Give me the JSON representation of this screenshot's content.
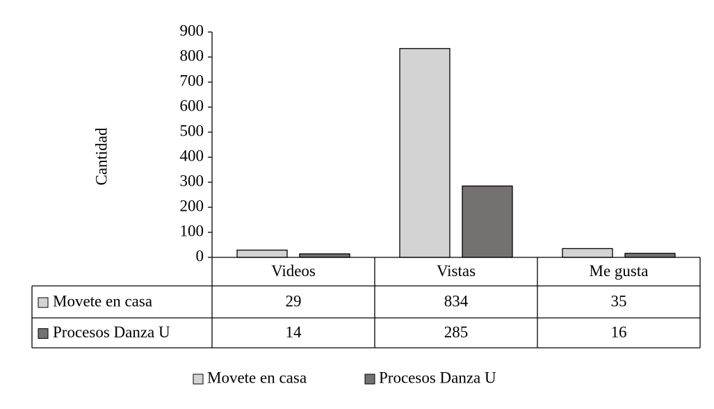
{
  "chart_data": {
    "type": "bar",
    "y_label": "Cantidad",
    "categories": [
      "Videos",
      "Vistas",
      "Me gusta"
    ],
    "series": [
      {
        "name": "Movete en casa",
        "color": "#d3d3d3",
        "values": [
          29,
          834,
          35
        ]
      },
      {
        "name": "Procesos Danza U",
        "color": "#767171",
        "values": [
          14,
          285,
          16
        ]
      }
    ],
    "ylim": [
      0,
      900
    ],
    "yticks": [
      0,
      100,
      200,
      300,
      400,
      500,
      600,
      700,
      800,
      900
    ],
    "grid": false,
    "data_table": true,
    "legend": "bottom"
  }
}
